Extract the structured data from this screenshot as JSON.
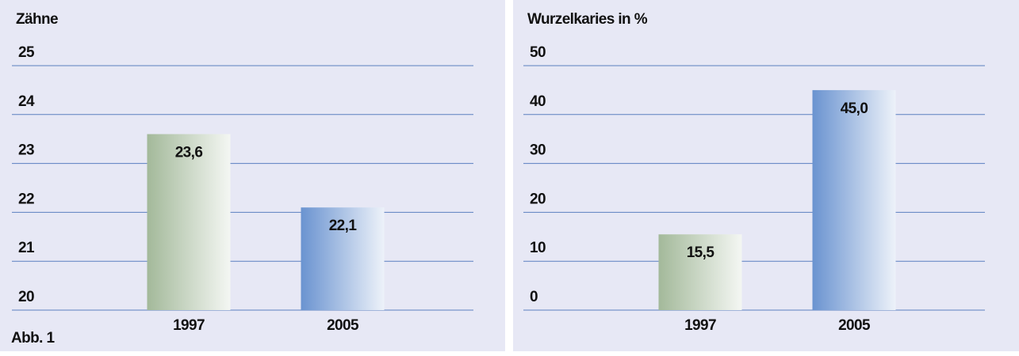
{
  "caption": "Abb. 1",
  "chart_data": [
    {
      "type": "bar",
      "y_label": "Zähne",
      "categories": [
        "1997",
        "2005"
      ],
      "values": [
        23.6,
        22.1
      ],
      "value_labels": [
        "23,6",
        "22,1"
      ],
      "colors": [
        "#a3b99a",
        "#6a93d0"
      ],
      "ylim": [
        20,
        25
      ],
      "yticks": [
        20,
        21,
        22,
        23,
        24,
        25
      ],
      "grid": true
    },
    {
      "type": "bar",
      "y_label": "Wurzelkaries in %",
      "categories": [
        "1997",
        "2005"
      ],
      "values": [
        15.5,
        45.0
      ],
      "value_labels": [
        "15,5",
        "45,0"
      ],
      "colors": [
        "#a3b99a",
        "#6a93d0"
      ],
      "ylim": [
        0,
        50
      ],
      "yticks": [
        0,
        10,
        20,
        30,
        40,
        50
      ],
      "grid": true
    }
  ]
}
